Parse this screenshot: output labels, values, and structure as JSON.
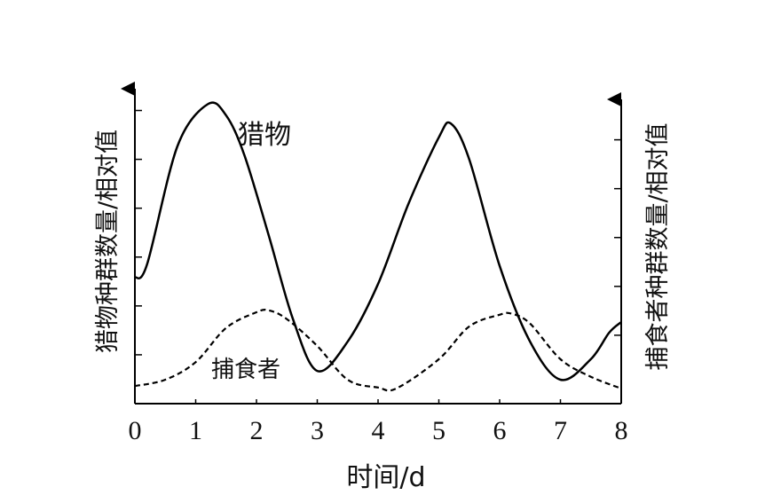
{
  "chart_data": {
    "type": "line",
    "x_label": "时间/d",
    "y_label": "猎物种群数量/相对值",
    "y2_label": "捕食者种群数量/相对值",
    "xlim": [
      0,
      8
    ],
    "xticks": [
      0,
      1,
      2,
      3,
      4,
      5,
      6,
      7,
      8
    ],
    "ylim": [
      0,
      6.5
    ],
    "yticks": [
      1,
      2,
      3,
      4,
      5,
      6
    ],
    "y2lim": [
      0,
      6.5
    ],
    "y2ticks": [
      1.4,
      2.4,
      3.4,
      4.4,
      5.4
    ],
    "series": [
      {
        "name": "猎物",
        "color": "#000000",
        "dash": false,
        "x": [
          0,
          0.2,
          0.7,
          1.2,
          1.5,
          1.8,
          2.2,
          2.6,
          3.0,
          3.5,
          4,
          4.5,
          5,
          5.2,
          5.5,
          6,
          6.5,
          7,
          7.5,
          7.8,
          8
        ],
        "values": [
          2.58,
          2.85,
          5.27,
          6.13,
          5.9,
          5.09,
          3.45,
          1.73,
          0.67,
          1.27,
          2.45,
          4.09,
          5.45,
          5.73,
          5,
          2.82,
          1.27,
          0.49,
          0.91,
          1.45,
          1.67
        ]
      },
      {
        "name": "捕食者",
        "color": "#000000",
        "dash": true,
        "axis": "y2",
        "x": [
          0,
          0.5,
          1,
          1.5,
          2,
          2.2,
          2.5,
          3,
          3.5,
          4,
          4.3,
          5,
          5.5,
          6,
          6.2,
          6.5,
          7,
          7.5,
          8
        ],
        "values": [
          0.36,
          0.49,
          0.85,
          1.55,
          1.87,
          1.91,
          1.73,
          1.18,
          0.49,
          0.33,
          0.31,
          0.91,
          1.58,
          1.82,
          1.84,
          1.64,
          0.91,
          0.55,
          0.31
        ]
      }
    ]
  }
}
